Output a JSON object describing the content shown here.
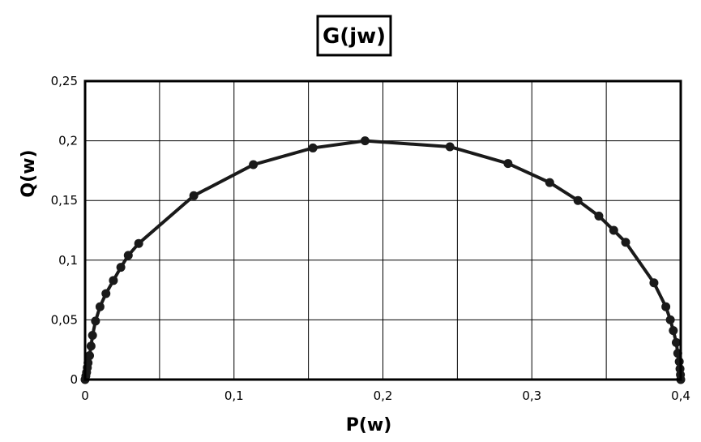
{
  "chart_data": {
    "type": "scatter",
    "title": "G(jw)",
    "xlabel": "P(w)",
    "ylabel": "Q(w)",
    "xlim": [
      0,
      0.4
    ],
    "ylim": [
      0,
      0.25
    ],
    "x_ticks": [
      0,
      0.1,
      0.2,
      0.3,
      0.4
    ],
    "x_tick_labels": [
      "0",
      "0,1",
      "0,2",
      "0,3",
      "0,4"
    ],
    "y_ticks": [
      0,
      0.05,
      0.1,
      0.15,
      0.2,
      0.25
    ],
    "y_tick_labels": [
      "0",
      "0,05",
      "0,1",
      "0,15",
      "0,2",
      "0,25"
    ],
    "grid": true,
    "legend": "none",
    "series": [
      {
        "color": "#1a1a1a",
        "line": true,
        "markers": true,
        "x": [
          0.0,
          0.0005,
          0.001,
          0.0015,
          0.002,
          0.003,
          0.004,
          0.005,
          0.007,
          0.01,
          0.014,
          0.019,
          0.024,
          0.029,
          0.036,
          0.073,
          0.113,
          0.153,
          0.188,
          0.245,
          0.284,
          0.312,
          0.331,
          0.345,
          0.355,
          0.363,
          0.382,
          0.39,
          0.393,
          0.395,
          0.397,
          0.398,
          0.399,
          0.3995,
          0.3998,
          0.4
        ],
        "y": [
          0.0,
          0.003,
          0.006,
          0.01,
          0.014,
          0.02,
          0.028,
          0.037,
          0.049,
          0.061,
          0.072,
          0.083,
          0.094,
          0.104,
          0.114,
          0.154,
          0.18,
          0.194,
          0.2,
          0.195,
          0.181,
          0.165,
          0.15,
          0.137,
          0.125,
          0.115,
          0.081,
          0.061,
          0.05,
          0.041,
          0.031,
          0.022,
          0.015,
          0.009,
          0.004,
          0.0
        ]
      }
    ]
  }
}
